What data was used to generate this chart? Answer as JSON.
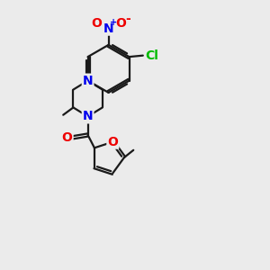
{
  "background_color": "#ebebeb",
  "bond_color": "#1a1a1a",
  "atom_colors": {
    "N": "#0000ee",
    "O": "#ee0000",
    "Cl": "#00bb00",
    "C": "#1a1a1a"
  },
  "font_size_atom": 10,
  "font_size_small": 8
}
